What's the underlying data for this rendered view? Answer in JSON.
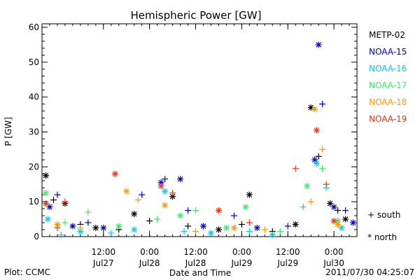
{
  "chart_data": {
    "type": "scatter",
    "title": "Hemispheric Power [GW]",
    "xlabel": "Date and Time",
    "ylabel": "P [GW]",
    "xlim": [
      "2011-07-26T20:00",
      "2011-07-30T06:00"
    ],
    "ylim": [
      0,
      61
    ],
    "yticks": [
      0,
      10,
      20,
      30,
      40,
      50,
      60
    ],
    "xticks": [
      {
        "time": "2011-07-27T12:00",
        "label1": "12:00",
        "label2": "Jul27"
      },
      {
        "time": "2011-07-28T00:00",
        "label1": "0:00",
        "label2": "Jul28"
      },
      {
        "time": "2011-07-28T12:00",
        "label1": "12:00",
        "label2": "Jul28"
      },
      {
        "time": "2011-07-29T00:00",
        "label1": "0:00",
        "label2": "Jul29"
      },
      {
        "time": "2011-07-29T12:00",
        "label1": "12:00",
        "label2": "Jul29"
      },
      {
        "time": "2011-07-30T00:00",
        "label1": "0:00",
        "label2": "Jul30"
      }
    ],
    "grid": false,
    "legend_position": "right",
    "marker_key": {
      "south": "+ south",
      "north": "* north"
    },
    "series": [
      {
        "name": "METP-02",
        "color": "#000000",
        "points": [
          {
            "t": "2011-07-26T21:00",
            "v": 17.5,
            "m": "north"
          },
          {
            "t": "2011-07-26T23:00",
            "v": 10.5,
            "m": "south"
          },
          {
            "t": "2011-07-27T02:00",
            "v": 9.5,
            "m": "north"
          },
          {
            "t": "2011-07-27T06:00",
            "v": 3.5,
            "m": "south"
          },
          {
            "t": "2011-07-27T10:00",
            "v": 2.5,
            "m": "north"
          },
          {
            "t": "2011-07-27T16:00",
            "v": 2.0,
            "m": "south"
          },
          {
            "t": "2011-07-27T20:00",
            "v": 6.5,
            "m": "north"
          },
          {
            "t": "2011-07-28T00:00",
            "v": 4.5,
            "m": "south"
          },
          {
            "t": "2011-07-28T06:00",
            "v": 11.5,
            "m": "north"
          },
          {
            "t": "2011-07-28T10:00",
            "v": 3.0,
            "m": "south"
          },
          {
            "t": "2011-07-28T18:00",
            "v": 2.0,
            "m": "north"
          },
          {
            "t": "2011-07-29T00:00",
            "v": 3.5,
            "m": "south"
          },
          {
            "t": "2011-07-29T02:00",
            "v": 12.0,
            "m": "north"
          },
          {
            "t": "2011-07-29T08:00",
            "v": 1.5,
            "m": "south"
          },
          {
            "t": "2011-07-29T14:00",
            "v": 3.5,
            "m": "north"
          },
          {
            "t": "2011-07-29T18:00",
            "v": 37.0,
            "m": "north"
          },
          {
            "t": "2011-07-29T20:00",
            "v": 23.0,
            "m": "south"
          },
          {
            "t": "2011-07-29T23:00",
            "v": 9.5,
            "m": "north"
          },
          {
            "t": "2011-07-30T01:00",
            "v": 7.5,
            "m": "south"
          },
          {
            "t": "2011-07-30T03:00",
            "v": 5.0,
            "m": "north"
          }
        ]
      },
      {
        "name": "NOAA-15",
        "color": "#0000cc",
        "points": [
          {
            "t": "2011-07-26T22:00",
            "v": 8.5,
            "m": "north"
          },
          {
            "t": "2011-07-27T00:00",
            "v": 12.0,
            "m": "south"
          },
          {
            "t": "2011-07-27T04:00",
            "v": 3.0,
            "m": "north"
          },
          {
            "t": "2011-07-27T08:00",
            "v": 4.0,
            "m": "south"
          },
          {
            "t": "2011-07-27T12:00",
            "v": 2.5,
            "m": "north"
          },
          {
            "t": "2011-07-27T22:00",
            "v": 12.0,
            "m": "south"
          },
          {
            "t": "2011-07-28T03:00",
            "v": 15.5,
            "m": "north"
          },
          {
            "t": "2011-07-28T04:00",
            "v": 16.5,
            "m": "south"
          },
          {
            "t": "2011-07-28T08:00",
            "v": 16.5,
            "m": "north"
          },
          {
            "t": "2011-07-28T10:00",
            "v": 7.5,
            "m": "south"
          },
          {
            "t": "2011-07-28T14:00",
            "v": 3.0,
            "m": "north"
          },
          {
            "t": "2011-07-28T22:00",
            "v": 6.0,
            "m": "south"
          },
          {
            "t": "2011-07-29T04:00",
            "v": 2.5,
            "m": "north"
          },
          {
            "t": "2011-07-29T12:00",
            "v": 3.0,
            "m": "south"
          },
          {
            "t": "2011-07-29T19:00",
            "v": 22.0,
            "m": "north"
          },
          {
            "t": "2011-07-29T20:00",
            "v": 55.0,
            "m": "north"
          },
          {
            "t": "2011-07-29T21:00",
            "v": 38.0,
            "m": "south"
          },
          {
            "t": "2011-07-30T00:00",
            "v": 8.5,
            "m": "north"
          },
          {
            "t": "2011-07-30T03:00",
            "v": 7.5,
            "m": "south"
          },
          {
            "t": "2011-07-30T05:00",
            "v": 4.0,
            "m": "north"
          }
        ]
      },
      {
        "name": "NOAA-16",
        "color": "#00ccee",
        "points": [
          {
            "t": "2011-07-26T21:30",
            "v": 5.0,
            "m": "north"
          },
          {
            "t": "2011-07-27T01:00",
            "v": 0.5,
            "m": "south"
          },
          {
            "t": "2011-07-27T06:00",
            "v": 1.5,
            "m": "north"
          },
          {
            "t": "2011-07-27T14:00",
            "v": 1.0,
            "m": "south"
          },
          {
            "t": "2011-07-27T20:00",
            "v": 2.0,
            "m": "north"
          },
          {
            "t": "2011-07-28T04:00",
            "v": 13.0,
            "m": "north"
          },
          {
            "t": "2011-07-28T09:00",
            "v": 1.5,
            "m": "south"
          },
          {
            "t": "2011-07-28T16:00",
            "v": 1.0,
            "m": "north"
          },
          {
            "t": "2011-07-29T02:00",
            "v": 1.5,
            "m": "south"
          },
          {
            "t": "2011-07-29T08:00",
            "v": 0.5,
            "m": "north"
          },
          {
            "t": "2011-07-29T16:00",
            "v": 8.5,
            "m": "south"
          },
          {
            "t": "2011-07-29T19:30",
            "v": 21.0,
            "m": "north"
          },
          {
            "t": "2011-07-29T22:00",
            "v": 14.0,
            "m": "south"
          },
          {
            "t": "2011-07-30T02:00",
            "v": 2.5,
            "m": "north"
          }
        ]
      },
      {
        "name": "NOAA-17",
        "color": "#33ee66",
        "points": [
          {
            "t": "2011-07-26T21:00",
            "v": 12.5,
            "m": "north"
          },
          {
            "t": "2011-07-27T02:00",
            "v": 4.0,
            "m": "south"
          },
          {
            "t": "2011-07-27T08:00",
            "v": 7.0,
            "m": "south"
          },
          {
            "t": "2011-07-27T16:00",
            "v": 3.0,
            "m": "north"
          },
          {
            "t": "2011-07-28T02:00",
            "v": 5.0,
            "m": "south"
          },
          {
            "t": "2011-07-28T08:00",
            "v": 6.0,
            "m": "north"
          },
          {
            "t": "2011-07-28T12:00",
            "v": 7.5,
            "m": "south"
          },
          {
            "t": "2011-07-28T20:00",
            "v": 2.5,
            "m": "north"
          },
          {
            "t": "2011-07-29T01:00",
            "v": 8.5,
            "m": "north"
          },
          {
            "t": "2011-07-29T10:00",
            "v": 1.5,
            "m": "south"
          },
          {
            "t": "2011-07-29T17:00",
            "v": 14.5,
            "m": "north"
          },
          {
            "t": "2011-07-29T21:00",
            "v": 19.5,
            "m": "south"
          },
          {
            "t": "2011-07-30T01:00",
            "v": 4.5,
            "m": "north"
          }
        ]
      },
      {
        "name": "NOAA-18",
        "color": "#ff9900",
        "points": [
          {
            "t": "2011-07-27T00:00",
            "v": 3.5,
            "m": "north"
          },
          {
            "t": "2011-07-27T06:00",
            "v": 2.5,
            "m": "south"
          },
          {
            "t": "2011-07-27T18:00",
            "v": 13.0,
            "m": "north"
          },
          {
            "t": "2011-07-27T21:00",
            "v": 10.5,
            "m": "south"
          },
          {
            "t": "2011-07-28T04:00",
            "v": 9.0,
            "m": "north"
          },
          {
            "t": "2011-07-28T12:00",
            "v": 1.5,
            "m": "south"
          },
          {
            "t": "2011-07-28T22:00",
            "v": 2.5,
            "m": "north"
          },
          {
            "t": "2011-07-29T06:00",
            "v": 2.0,
            "m": "south"
          },
          {
            "t": "2011-07-29T18:00",
            "v": 10.0,
            "m": "south"
          },
          {
            "t": "2011-07-29T19:00",
            "v": 36.5,
            "m": "north"
          },
          {
            "t": "2011-07-29T21:00",
            "v": 25.0,
            "m": "south"
          },
          {
            "t": "2011-07-30T01:00",
            "v": 3.5,
            "m": "north"
          }
        ]
      },
      {
        "name": "NOAA-19",
        "color": "#ee3311",
        "points": [
          {
            "t": "2011-07-26T21:00",
            "v": 9.5,
            "m": "north"
          },
          {
            "t": "2011-07-27T00:00",
            "v": 2.5,
            "m": "south"
          },
          {
            "t": "2011-07-27T02:00",
            "v": 10.0,
            "m": "south"
          },
          {
            "t": "2011-07-27T15:00",
            "v": 18.0,
            "m": "north"
          },
          {
            "t": "2011-07-28T03:00",
            "v": 14.5,
            "m": "north"
          },
          {
            "t": "2011-07-28T06:00",
            "v": 12.5,
            "m": "south"
          },
          {
            "t": "2011-07-28T18:00",
            "v": 7.5,
            "m": "north"
          },
          {
            "t": "2011-07-29T02:00",
            "v": 4.0,
            "m": "south"
          },
          {
            "t": "2011-07-29T14:00",
            "v": 19.5,
            "m": "south"
          },
          {
            "t": "2011-07-29T19:30",
            "v": 30.5,
            "m": "north"
          },
          {
            "t": "2011-07-29T22:00",
            "v": 15.0,
            "m": "south"
          },
          {
            "t": "2011-07-30T00:00",
            "v": 4.5,
            "m": "north"
          }
        ]
      }
    ]
  },
  "footer": {
    "plot_credit": "Plot: CCMC",
    "timestamp": "2011/07/30 04:25:07"
  }
}
